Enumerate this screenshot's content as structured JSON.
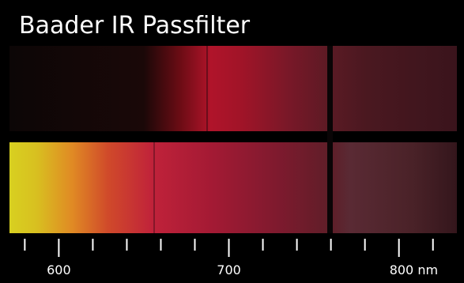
{
  "title": "Baader IR Passfilter",
  "scale": {
    "xlim": [
      571,
      835
    ],
    "xticks": [
      600,
      700,
      {
        "value": 800,
        "label": "800 nm"
      }
    ],
    "minor_ticks": [
      580,
      620,
      640,
      660,
      680,
      720,
      740,
      760,
      780,
      820
    ]
  }
}
